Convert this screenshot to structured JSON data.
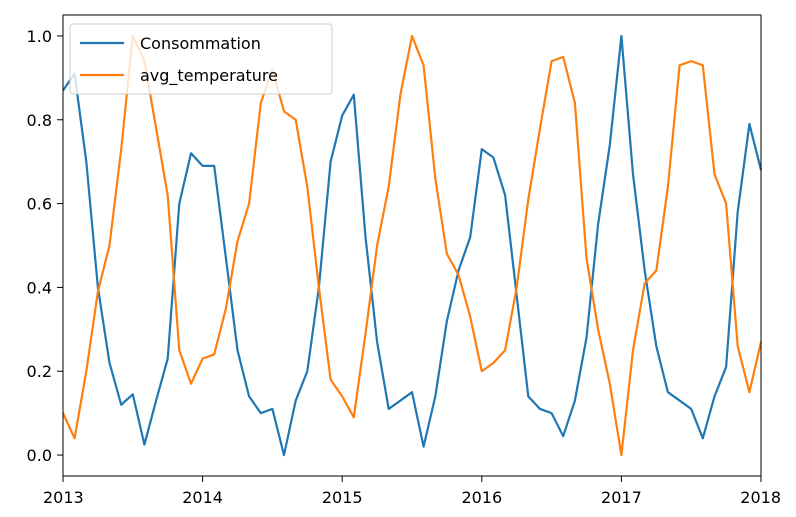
{
  "chart_data": {
    "type": "line",
    "title": "",
    "xlabel": "",
    "ylabel": "",
    "xlim": [
      2013,
      2018
    ],
    "ylim": [
      -0.05,
      1.05
    ],
    "xticks": [
      "2013",
      "2014",
      "2015",
      "2016",
      "2017",
      "2018"
    ],
    "yticks": [
      "0.0",
      "0.2",
      "0.4",
      "0.6",
      "0.8",
      "1.0"
    ],
    "grid": false,
    "legend_position": "top-left",
    "x": [
      2013.0,
      2013.083,
      2013.167,
      2013.25,
      2013.333,
      2013.417,
      2013.5,
      2013.583,
      2013.667,
      2013.75,
      2013.833,
      2013.917,
      2014.0,
      2014.083,
      2014.167,
      2014.25,
      2014.333,
      2014.417,
      2014.5,
      2014.583,
      2014.667,
      2014.75,
      2014.833,
      2014.917,
      2015.0,
      2015.083,
      2015.167,
      2015.25,
      2015.333,
      2015.417,
      2015.5,
      2015.583,
      2015.667,
      2015.75,
      2015.833,
      2015.917,
      2016.0,
      2016.083,
      2016.167,
      2016.25,
      2016.333,
      2016.417,
      2016.5,
      2016.583,
      2016.667,
      2016.75,
      2016.833,
      2016.917,
      2017.0,
      2017.083,
      2017.167,
      2017.25,
      2017.333,
      2017.417,
      2017.5,
      2017.583,
      2017.667,
      2017.75,
      2017.833,
      2017.917,
      2018.0
    ],
    "series": [
      {
        "name": "Consommation",
        "color": "#1f77b4",
        "values": [
          0.87,
          0.91,
          0.7,
          0.4,
          0.22,
          0.12,
          0.145,
          0.025,
          0.13,
          0.23,
          0.6,
          0.72,
          0.69,
          0.69,
          0.47,
          0.25,
          0.14,
          0.1,
          0.11,
          0.0,
          0.13,
          0.2,
          0.4,
          0.7,
          0.81,
          0.86,
          0.52,
          0.27,
          0.11,
          0.13,
          0.15,
          0.02,
          0.14,
          0.32,
          0.44,
          0.52,
          0.73,
          0.71,
          0.62,
          0.38,
          0.14,
          0.11,
          0.1,
          0.045,
          0.13,
          0.28,
          0.55,
          0.74,
          1.0,
          0.67,
          0.44,
          0.26,
          0.15,
          0.13,
          0.11,
          0.04,
          0.14,
          0.21,
          0.58,
          0.79,
          0.68
        ]
      },
      {
        "name": "avg_temperature",
        "color": "#ff7f0e",
        "values": [
          0.1,
          0.04,
          0.2,
          0.39,
          0.5,
          0.73,
          1.0,
          0.94,
          0.78,
          0.62,
          0.25,
          0.17,
          0.23,
          0.24,
          0.35,
          0.51,
          0.6,
          0.84,
          0.92,
          0.82,
          0.8,
          0.64,
          0.4,
          0.18,
          0.14,
          0.09,
          0.29,
          0.5,
          0.64,
          0.86,
          1.0,
          0.93,
          0.66,
          0.48,
          0.43,
          0.33,
          0.2,
          0.22,
          0.25,
          0.4,
          0.61,
          0.78,
          0.94,
          0.95,
          0.84,
          0.47,
          0.3,
          0.17,
          0.0,
          0.25,
          0.41,
          0.44,
          0.64,
          0.93,
          0.94,
          0.93,
          0.67,
          0.6,
          0.26,
          0.15,
          0.27
        ]
      }
    ]
  }
}
